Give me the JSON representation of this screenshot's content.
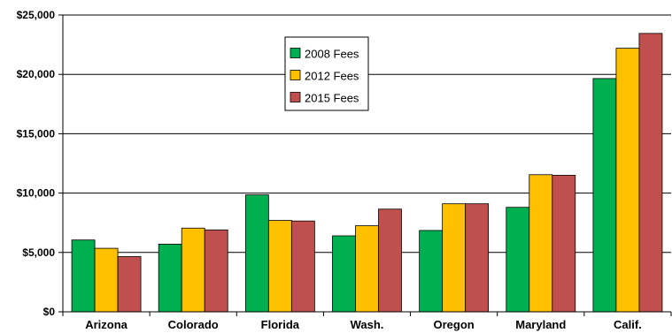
{
  "chart_data": {
    "type": "bar",
    "title": "",
    "xlabel": "",
    "ylabel": "",
    "categories": [
      "Arizona",
      "Colorado",
      "Florida",
      "Wash.",
      "Oregon",
      "Maryland",
      "Calif."
    ],
    "series": [
      {
        "name": "2008 Fees",
        "color": "#00b050",
        "values": [
          6050,
          5700,
          9850,
          6400,
          6850,
          8800,
          19650
        ]
      },
      {
        "name": "2012 Fees",
        "color": "#ffc000",
        "values": [
          5350,
          7050,
          7700,
          7250,
          9100,
          11550,
          22200
        ]
      },
      {
        "name": "2015 Fees",
        "color": "#c0504d",
        "values": [
          4650,
          6900,
          7650,
          8650,
          9100,
          11500,
          23450
        ]
      }
    ],
    "ylim": [
      0,
      25000
    ],
    "yticks": [
      0,
      5000,
      10000,
      15000,
      20000,
      25000
    ],
    "ytick_labels": [
      "$0",
      "$5,000",
      "$10,000",
      "$15,000",
      "$20,000",
      "$25,000"
    ],
    "grid": true,
    "legend_position": "top-center"
  }
}
